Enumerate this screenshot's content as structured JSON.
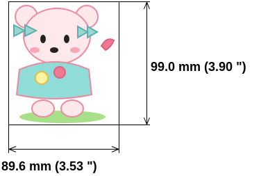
{
  "dimensions": {
    "height": "99.0 mm (3.90 \")",
    "width": "89.6 mm (3.53 \")"
  }
}
